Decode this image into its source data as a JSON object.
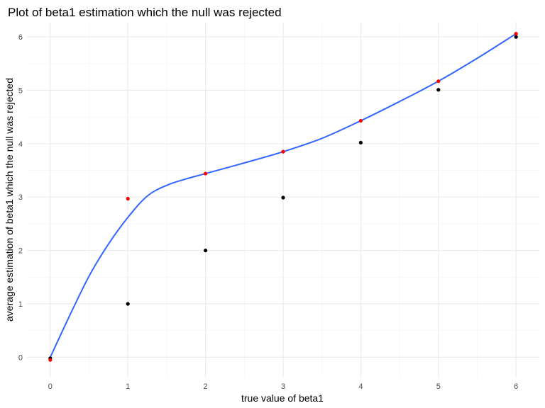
{
  "chart_data": {
    "type": "scatter",
    "title": "Plot of beta1 estimation which the null was rejected",
    "xlabel": "true value of beta1",
    "ylabel": "average estimation of beta1 which the null was rejected",
    "xlim": [
      -0.3,
      6.3
    ],
    "ylim": [
      -0.38,
      6.28
    ],
    "x_ticks": [
      0,
      1,
      2,
      3,
      4,
      5,
      6
    ],
    "y_ticks": [
      0,
      1,
      2,
      3,
      4,
      5,
      6
    ],
    "grid": true,
    "legend": "none",
    "series": [
      {
        "color": "#000000",
        "x": [
          0,
          1,
          2,
          3,
          4,
          5,
          6
        ],
        "y": [
          -0.02,
          1.0,
          2.0,
          2.99,
          4.02,
          5.01,
          6.0
        ]
      },
      {
        "color": "#ff0000",
        "x": [
          0,
          1,
          2,
          3,
          4,
          5,
          6
        ],
        "y": [
          -0.05,
          2.97,
          3.44,
          3.85,
          4.43,
          5.17,
          6.06
        ]
      }
    ],
    "smooth_line": {
      "color": "#3366ff",
      "x": [
        0,
        0.25,
        0.5,
        0.75,
        1,
        1.25,
        1.5,
        1.75,
        2,
        2.5,
        3,
        3.5,
        4,
        4.5,
        5,
        5.5,
        6
      ],
      "y": [
        0.0,
        0.78,
        1.52,
        2.12,
        2.62,
        3.02,
        3.22,
        3.34,
        3.44,
        3.64,
        3.85,
        4.1,
        4.43,
        4.79,
        5.17,
        5.6,
        6.06
      ]
    }
  }
}
